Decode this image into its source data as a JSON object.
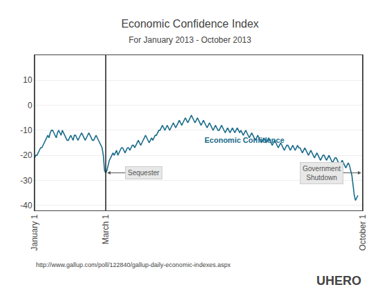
{
  "chart_data": {
    "type": "line",
    "title": "Economic Confidence Index",
    "subtitle": "For January 2013 - October 2013",
    "color": "#1a6b8a",
    "x": [
      0,
      1,
      2,
      3,
      4,
      5,
      6,
      7,
      8,
      9,
      10,
      11,
      12,
      13,
      14,
      15,
      16,
      17,
      18,
      19,
      20,
      21,
      22,
      23,
      24,
      25,
      26,
      27,
      28,
      29,
      30,
      31,
      32,
      33,
      34,
      35,
      36,
      37,
      38,
      39,
      40,
      41,
      42,
      43,
      44,
      45,
      46,
      47,
      48,
      49,
      50,
      51,
      52,
      53,
      54,
      55,
      56,
      57,
      58,
      59,
      60,
      61,
      62,
      63,
      64,
      65,
      66,
      67,
      68,
      69,
      70,
      71,
      72,
      73,
      74,
      75,
      76,
      77,
      78,
      79,
      80,
      81,
      82,
      83,
      84,
      85,
      86,
      87,
      88,
      89,
      90,
      91,
      92,
      93,
      94,
      95,
      96,
      97,
      98,
      99,
      100,
      101,
      102,
      103,
      104,
      105,
      106,
      107,
      108,
      109,
      110,
      111,
      112,
      113,
      114,
      115,
      116,
      117,
      118,
      119,
      120,
      121,
      122,
      123,
      124,
      125,
      126,
      127,
      128,
      129,
      130,
      131,
      132,
      133,
      134,
      135,
      136,
      137,
      138,
      139,
      140,
      141,
      142,
      143,
      144,
      145,
      146,
      147,
      148,
      149,
      150,
      151,
      152,
      153,
      154,
      155,
      156,
      157,
      158,
      159,
      160,
      161,
      162,
      163,
      164,
      165,
      166,
      167,
      168,
      169,
      170,
      171,
      172,
      173,
      174,
      175,
      176,
      177,
      178,
      179,
      180,
      181,
      182,
      183,
      184,
      185,
      186,
      187,
      188,
      189,
      190,
      191,
      192,
      193,
      194,
      195,
      196,
      197,
      198,
      199,
      200,
      201,
      202,
      203,
      204,
      205,
      206,
      207,
      208,
      209,
      210,
      211,
      212,
      213,
      214,
      215,
      216,
      217,
      218,
      219,
      220,
      221,
      222,
      223,
      224,
      225,
      226,
      227,
      228,
      229,
      230,
      231,
      232,
      233,
      234,
      235,
      236,
      237,
      238,
      239,
      240,
      241,
      242,
      243,
      244,
      245,
      246,
      247,
      248,
      249,
      250,
      251,
      252,
      253,
      254,
      255,
      256,
      257,
      258,
      259,
      260,
      261,
      262,
      263,
      264,
      265,
      266,
      267,
      268
    ],
    "values": [
      -21,
      -20,
      -20,
      -19,
      -18,
      -17,
      -17,
      -16,
      -15,
      -14,
      -13,
      -12,
      -13,
      -11,
      -10,
      -10,
      -11,
      -12,
      -13,
      -11,
      -10,
      -11,
      -12,
      -10,
      -11,
      -12,
      -13,
      -14,
      -14,
      -13,
      -12,
      -13,
      -14,
      -12,
      -12,
      -13,
      -14,
      -13,
      -12,
      -11,
      -12,
      -13,
      -14,
      -13,
      -12,
      -11,
      -12,
      -13,
      -14,
      -14,
      -13,
      -12,
      -13,
      -14,
      -15,
      -16,
      -17,
      -20,
      -26,
      -27,
      -26,
      -24,
      -22,
      -21,
      -20,
      -19,
      -20,
      -19,
      -18,
      -20,
      -19,
      -18,
      -17,
      -17,
      -18,
      -19,
      -18,
      -17,
      -17,
      -18,
      -17,
      -16,
      -16,
      -17,
      -16,
      -15,
      -14,
      -15,
      -16,
      -15,
      -14,
      -13,
      -12,
      -13,
      -14,
      -15,
      -14,
      -13,
      -14,
      -13,
      -12,
      -12,
      -11,
      -10,
      -10,
      -9,
      -8,
      -9,
      -10,
      -9,
      -8,
      -9,
      -10,
      -9,
      -8,
      -7,
      -8,
      -9,
      -8,
      -7,
      -6,
      -7,
      -8,
      -7,
      -6,
      -5,
      -6,
      -7,
      -6,
      -5,
      -4,
      -5,
      -6,
      -7,
      -6,
      -5,
      -6,
      -7,
      -8,
      -7,
      -6,
      -7,
      -8,
      -9,
      -8,
      -7,
      -8,
      -9,
      -10,
      -9,
      -8,
      -9,
      -10,
      -10,
      -9,
      -8,
      -9,
      -10,
      -11,
      -10,
      -9,
      -10,
      -11,
      -10,
      -9,
      -10,
      -11,
      -10,
      -9,
      -10,
      -11,
      -10,
      -11,
      -12,
      -11,
      -10,
      -11,
      -12,
      -13,
      -12,
      -11,
      -12,
      -13,
      -14,
      -13,
      -12,
      -13,
      -14,
      -15,
      -14,
      -13,
      -14,
      -15,
      -14,
      -13,
      -14,
      -15,
      -16,
      -15,
      -14,
      -15,
      -16,
      -17,
      -16,
      -15,
      -16,
      -17,
      -18,
      -17,
      -16,
      -16,
      -17,
      -18,
      -17,
      -16,
      -17,
      -18,
      -17,
      -16,
      -17,
      -17,
      -18,
      -19,
      -18,
      -17,
      -18,
      -19,
      -20,
      -19,
      -18,
      -19,
      -20,
      -21,
      -20,
      -19,
      -20,
      -21,
      -22,
      -21,
      -20,
      -20,
      -21,
      -22,
      -21,
      -20,
      -21,
      -22,
      -23,
      -22,
      -21,
      -21,
      -22,
      -23,
      -24,
      -23,
      -22,
      -23,
      -24,
      -25,
      -24,
      -23,
      -24,
      -26,
      -28,
      -32,
      -36,
      -38,
      -37,
      -36
    ],
    "xlim": [
      0,
      272
    ],
    "xticks": [
      {
        "value": 0,
        "label": "January 1"
      },
      {
        "value": 59,
        "label": "March 1"
      },
      {
        "value": 272,
        "label": "October 1"
      }
    ],
    "ylim": [
      -42,
      20
    ],
    "yticks": [
      10,
      0,
      -10,
      -20,
      -30,
      -40
    ],
    "grid": true,
    "vlines": {
      "values": [
        0,
        59,
        272
      ],
      "color": "#1a1a1a"
    },
    "annotations": [
      {
        "text": "Economic Confidence",
        "x": 140,
        "y": -16
      },
      {
        "text": "Sequester",
        "x": 59,
        "y": -27
      },
      {
        "text": "Government\nShutdown",
        "x": 272,
        "y": -27
      }
    ],
    "source": "http://www.gallup.com/poll/122840/gallup-daily-economic-indexes.aspx",
    "brand": "UHERO"
  }
}
